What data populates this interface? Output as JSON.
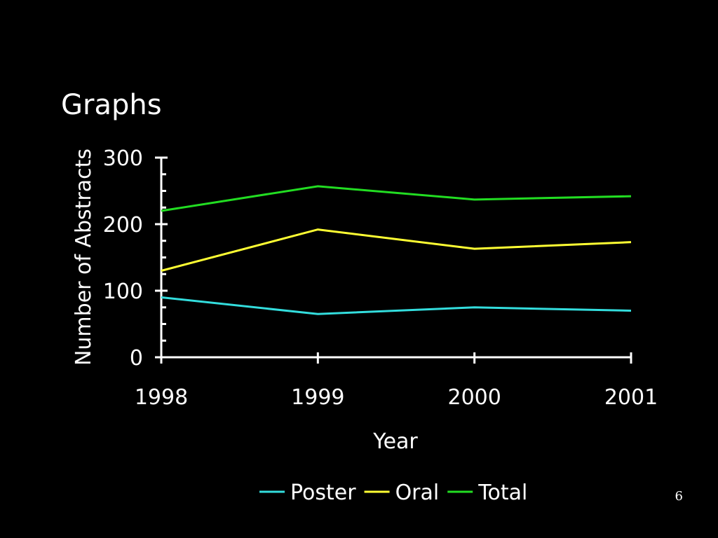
{
  "slide": {
    "title": "Graphs",
    "page_number": "6"
  },
  "chart_data": {
    "type": "line",
    "x": [
      1998,
      1999,
      2000,
      2001
    ],
    "categories": [
      "1998",
      "1999",
      "2000",
      "2001"
    ],
    "series": [
      {
        "name": "Poster",
        "color": "#33dddd",
        "values": [
          90,
          65,
          75,
          70
        ]
      },
      {
        "name": "Oral",
        "color": "#ffff33",
        "values": [
          130,
          192,
          163,
          173
        ]
      },
      {
        "name": "Total",
        "color": "#22dd22",
        "values": [
          220,
          257,
          237,
          242
        ]
      }
    ],
    "title": "",
    "xlabel": "Year",
    "ylabel": "Number of Abstracts",
    "ylim": [
      0,
      300
    ],
    "yticks": [
      0,
      100,
      200,
      300
    ],
    "grid": false,
    "legend_position": "bottom"
  }
}
